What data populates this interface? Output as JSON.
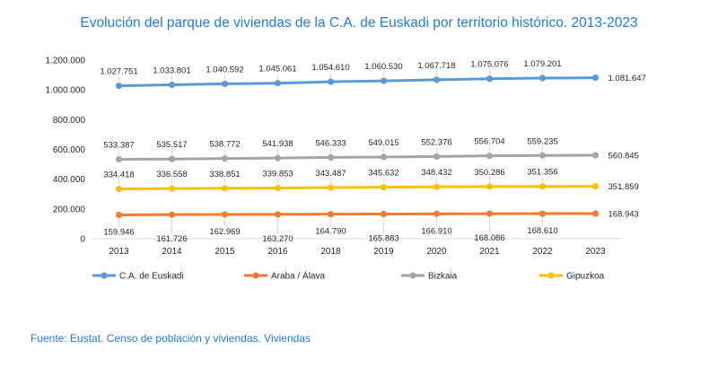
{
  "chart_data": {
    "type": "line",
    "title": "Evolución del parque de viviendas de la C.A. de Euskadi por territorio histórico. 2013-2023",
    "xlabel": "",
    "ylabel": "",
    "categories": [
      "2013",
      "2014",
      "2015",
      "2016",
      "2018",
      "2019",
      "2020",
      "2021",
      "2022",
      "2023"
    ],
    "ylim": [
      0,
      1200000
    ],
    "yticks": [
      0,
      200000,
      400000,
      600000,
      800000,
      1000000,
      1200000
    ],
    "ytick_labels": [
      "0",
      "200.000",
      "400.000",
      "600.000",
      "800.000",
      "1.000.000",
      "1.200.000"
    ],
    "grid": false,
    "legend_position": "bottom",
    "series": [
      {
        "name": "C.A. de Euskadi",
        "color": "#5b9bd5",
        "values": [
          1027751,
          1033801,
          1040592,
          1045061,
          1054610,
          1060530,
          1067718,
          1075076,
          1079201,
          1081647
        ],
        "labels": [
          "1.027.751",
          "1.033.801",
          "1.040.592",
          "1.045.061",
          "1.054.610",
          "1.060.530",
          "1.067.718",
          "1.075.076",
          "1.079.201",
          "1.081.647"
        ]
      },
      {
        "name": "Araba / Álava",
        "color": "#ed7d31",
        "values": [
          159946,
          161726,
          162969,
          163270,
          164790,
          165883,
          166910,
          168086,
          168610,
          168943
        ],
        "labels": [
          "159.946",
          "161.726",
          "162.969",
          "163.270",
          "164.790",
          "165.883",
          "166.910",
          "168.086",
          "168.610",
          "168.943"
        ]
      },
      {
        "name": "Bizkaia",
        "color": "#a5a5a5",
        "values": [
          533387,
          535517,
          538772,
          541938,
          546333,
          549015,
          552376,
          556704,
          559235,
          560845
        ],
        "labels": [
          "533.387",
          "535.517",
          "538.772",
          "541.938",
          "546.333",
          "549.015",
          "552.376",
          "556.704",
          "559.235",
          "560.845"
        ]
      },
      {
        "name": "Gipuzkoa",
        "color": "#ffc000",
        "values": [
          334418,
          336558,
          338851,
          339853,
          343487,
          345632,
          348432,
          350286,
          351356,
          351859
        ],
        "labels": [
          "334.418",
          "336.558",
          "338.851",
          "339.853",
          "343.487",
          "345.632",
          "348.432",
          "350.286",
          "351.356",
          "351.859"
        ]
      }
    ],
    "source": "Fuente: Eustat. Censo de población y viviendas. Viviendas"
  }
}
